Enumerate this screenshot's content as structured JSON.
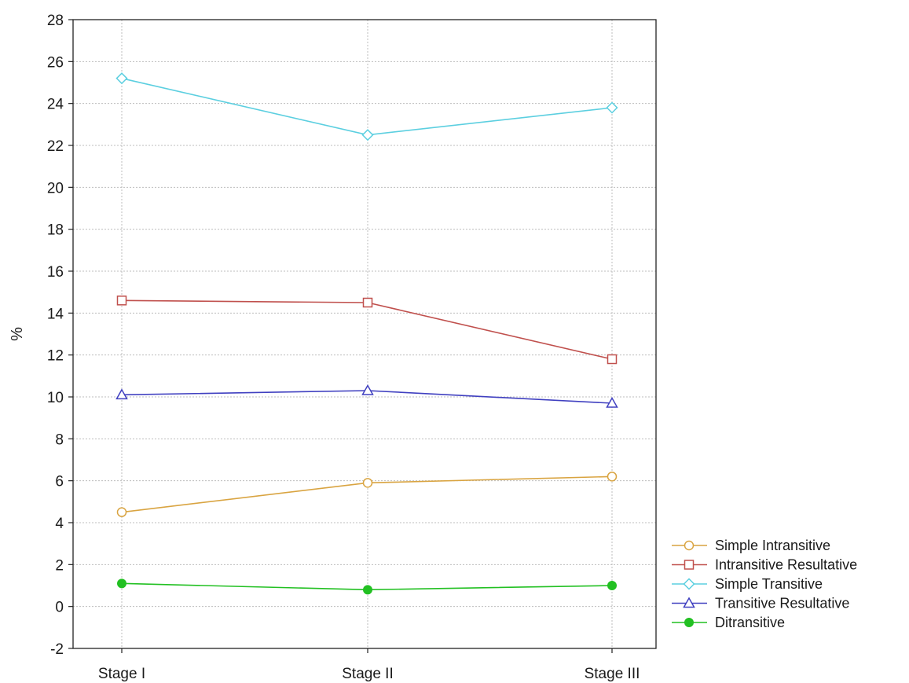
{
  "chart_data": {
    "type": "line",
    "title": "",
    "xlabel": "",
    "ylabel": "%",
    "ylim": [
      -2,
      28
    ],
    "yticks": [
      -2,
      0,
      2,
      4,
      6,
      8,
      10,
      12,
      14,
      16,
      18,
      20,
      22,
      24,
      26,
      28
    ],
    "categories": [
      "Stage I",
      "Stage II",
      "Stage III"
    ],
    "grid": true,
    "legend_position": "bottom-right, outside plot",
    "series": [
      {
        "name": "Simple Intransitive",
        "values": [
          4.5,
          5.9,
          6.2
        ],
        "color": "#d9a441",
        "marker": "open-circle"
      },
      {
        "name": "Intransitive Resultative",
        "values": [
          14.6,
          14.5,
          11.8
        ],
        "color": "#c0504d",
        "marker": "open-square"
      },
      {
        "name": "Simple Transitive",
        "values": [
          25.2,
          22.5,
          23.8
        ],
        "color": "#5ccfe0",
        "marker": "open-diamond"
      },
      {
        "name": "Transitive Resultative",
        "values": [
          10.1,
          10.3,
          9.7
        ],
        "color": "#4040c0",
        "marker": "open-triangle"
      },
      {
        "name": "Ditransitive",
        "values": [
          1.1,
          0.8,
          1.0
        ],
        "color": "#22c022",
        "marker": "filled-circle"
      }
    ]
  }
}
